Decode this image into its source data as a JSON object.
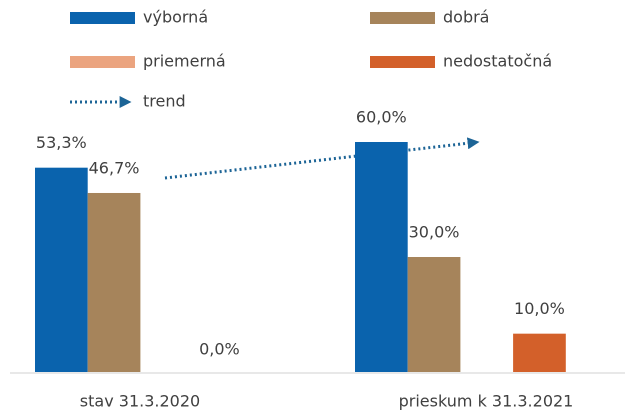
{
  "chart_data": {
    "type": "bar",
    "categories": [
      "stav 31.3.2020",
      "prieskum k 31.3.2021"
    ],
    "series": [
      {
        "name": "výborná",
        "color": "#0a63ad",
        "values": [
          53.3,
          60.0
        ],
        "value_labels": [
          "53,3%",
          "60,0%"
        ]
      },
      {
        "name": "dobrá",
        "color": "#a6845b",
        "values": [
          46.7,
          30.0
        ],
        "value_labels": [
          "46,7%",
          "30,0%"
        ]
      },
      {
        "name": "priemerná",
        "color": "#eba47f",
        "values": [
          null,
          null
        ],
        "value_labels": [
          null,
          null
        ]
      },
      {
        "name": "nedostatočná",
        "color": "#d3602a",
        "values": [
          0.0,
          10.0
        ],
        "value_labels": [
          "0,0%",
          "10,0%"
        ]
      }
    ],
    "trend": {
      "name": "trend",
      "color": "#1c6496"
    },
    "legend": "top"
  }
}
